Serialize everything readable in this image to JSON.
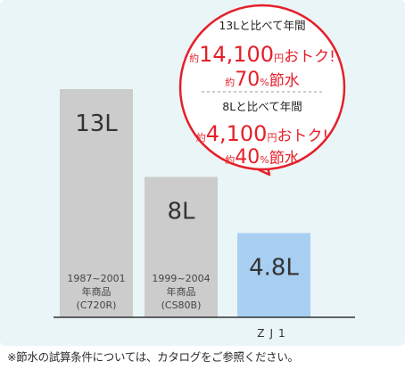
{
  "chart_data": {
    "type": "bar",
    "unit": "L",
    "categories": [
      "1987~2001 年商品 (C720R)",
      "1999~2004 年商品 (CS80B)",
      "ZJ1"
    ],
    "values": [
      13,
      8,
      4.8
    ],
    "bars": [
      {
        "value_label": "13L",
        "caption": [
          "1987~2001",
          "年商品",
          "(C720R)"
        ],
        "color": "#cccccc"
      },
      {
        "value_label": "8L",
        "caption": [
          "1999~2004",
          "年商品",
          "(CS80B)"
        ],
        "color": "#cccccc"
      },
      {
        "value_label": "4.8L",
        "caption": [],
        "color": "#a8cff2"
      }
    ],
    "bottom_label": "ZJ1",
    "callout": [
      {
        "heading": "13Lと比べて年間",
        "prefix": "約",
        "money": "14,100",
        "money_unit": "円",
        "money_suffix": "おトク!",
        "water": "70",
        "water_unit": "%",
        "water_suffix": "節水"
      },
      {
        "heading": "8Lと比べて年間",
        "prefix": "約",
        "money": "4,100",
        "money_unit": "円",
        "money_suffix": "おトク!",
        "water": "40",
        "water_unit": "%",
        "water_suffix": "節水"
      }
    ],
    "colors": {
      "accent": "#e5202a",
      "bar_gray": "#cccccc",
      "bar_blue": "#a8cff2",
      "panel": "#eaf5f8"
    }
  },
  "footnote": "※節水の試算条件については、カタログをご参照ください。"
}
